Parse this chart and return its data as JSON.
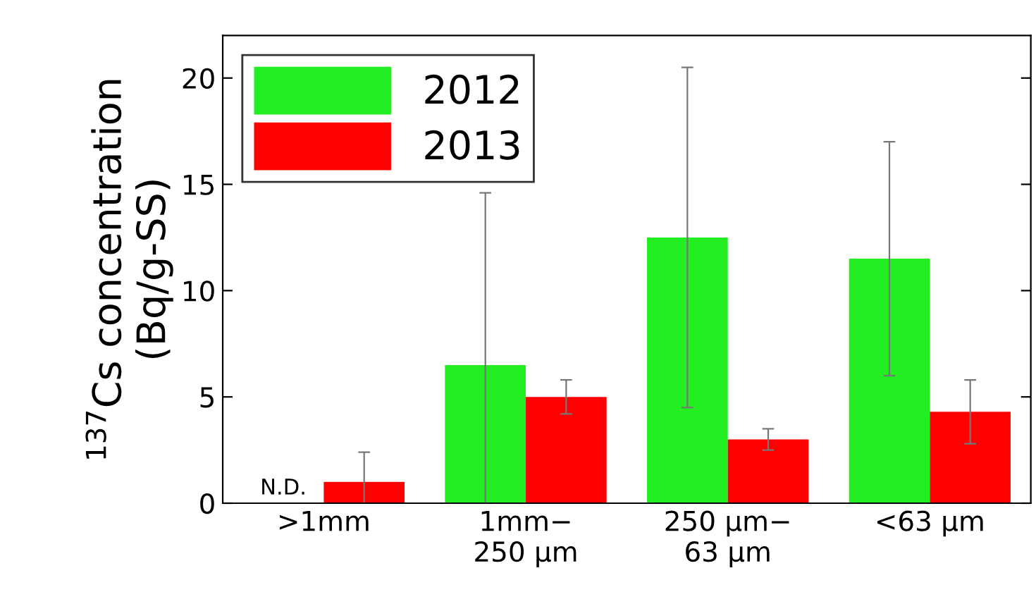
{
  "chart_data": {
    "type": "bar",
    "ylabel": "$^{137}$Cs concentration\n(Bq/g-SS)",
    "categories": [
      ">1mm",
      "1mm−\n250 μm",
      "250 μm−\n63 μm",
      "<63 μm"
    ],
    "series": [
      {
        "name": "2012",
        "color": "#22ee22",
        "values": [
          null,
          6.5,
          12.5,
          11.5
        ],
        "errors": [
          null,
          8.1,
          8.0,
          5.5
        ]
      },
      {
        "name": "2013",
        "color": "#ff0000",
        "values": [
          1.0,
          5.0,
          3.0,
          4.3
        ],
        "errors": [
          1.4,
          0.8,
          0.5,
          1.5
        ]
      }
    ],
    "ylim": [
      0,
      22
    ],
    "yticks": [
      0,
      5,
      10,
      15,
      20
    ],
    "grid": false,
    "legend": "top left",
    "annotations": [
      "N.D."
    ]
  }
}
